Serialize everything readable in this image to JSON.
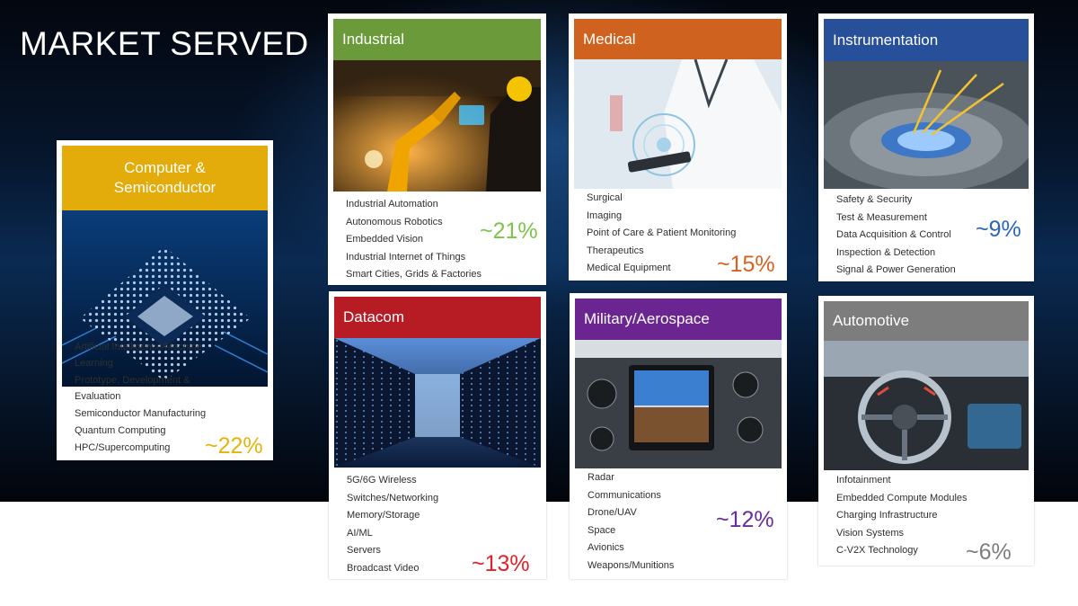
{
  "title": "MARKET SERVED",
  "colors": {
    "computer": "#e3ac0a",
    "industrial": "#6b9a3a",
    "medical": "#d0621f",
    "instrumentation": "#274f9a",
    "datacom": "#b71c25",
    "military": "#6a2590",
    "automotive": "#7d7d7d"
  },
  "segments": {
    "computer": {
      "header": "Computer & Semiconductor",
      "share": "~22%",
      "items": [
        "Artificial Intelligence/Machine Learning",
        "Prototype, Development & Evaluation",
        "Semiconductor Manufacturing",
        "Quantum Computing",
        "HPC/Supercomputing"
      ]
    },
    "industrial": {
      "header": "Industrial",
      "share": "~21%",
      "items": [
        "Industrial Automation",
        "Autonomous Robotics",
        "Embedded Vision",
        "Industrial Internet of Things",
        "Smart Cities, Grids & Factories"
      ]
    },
    "medical": {
      "header": "Medical",
      "share": "~15%",
      "items": [
        "Surgical",
        "Imaging",
        "Point of Care & Patient Monitoring",
        "Therapeutics",
        "Medical Equipment"
      ]
    },
    "instrumentation": {
      "header": "Instrumentation",
      "share": "~9%",
      "items": [
        "Safety & Security",
        "Test & Measurement",
        "Data Acquisition & Control",
        "Inspection & Detection",
        "Signal & Power Generation"
      ]
    },
    "datacom": {
      "header": "Datacom",
      "share": "~13%",
      "items": [
        "5G/6G Wireless",
        "Switches/Networking",
        "Memory/Storage",
        "AI/ML",
        "Servers",
        "Broadcast Video"
      ]
    },
    "military": {
      "header": "Military/Aerospace",
      "share": "~12%",
      "items": [
        "Radar",
        "Communications",
        "Drone/UAV",
        "Space",
        "Avionics",
        "Weapons/Munitions"
      ]
    },
    "automotive": {
      "header": "Automotive",
      "share": "~6%",
      "items": [
        "Infotainment",
        "Embedded Compute Modules",
        "Charging Infrastructure",
        "Vision Systems",
        "C-V2X Technology"
      ]
    }
  }
}
